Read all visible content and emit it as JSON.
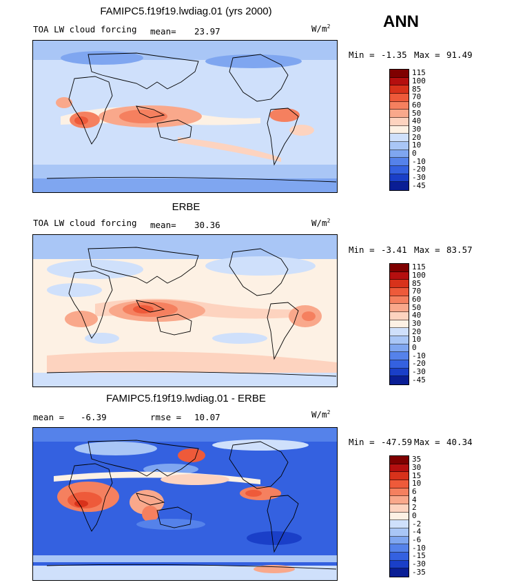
{
  "season": "ANN",
  "units_base": "W/m",
  "units_exp": "2",
  "panels": [
    {
      "title": "FAMIPC5.f19f19.lwdiag.01 (yrs 2000)",
      "left_label": "TOA LW cloud forcing",
      "stat_label": "mean=",
      "stat_value": "23.97",
      "min_label": "Min =",
      "min_value": "-1.35",
      "max_label": "Max =",
      "max_value": "91.49",
      "colorbar_levels": [
        "115",
        "100",
        "85",
        "70",
        "60",
        "50",
        "40",
        "30",
        "20",
        "10",
        "0",
        "-10",
        "-20",
        "-30",
        "-45"
      ]
    },
    {
      "title": "ERBE",
      "left_label": "TOA LW cloud forcing",
      "stat_label": "mean=",
      "stat_value": "30.36",
      "min_label": "Min =",
      "min_value": "-3.41",
      "max_label": "Max =",
      "max_value": "83.57",
      "colorbar_levels": [
        "115",
        "100",
        "85",
        "70",
        "60",
        "50",
        "40",
        "30",
        "20",
        "10",
        "0",
        "-10",
        "-20",
        "-30",
        "-45"
      ]
    },
    {
      "title": "FAMIPC5.f19f19.lwdiag.01 - ERBE",
      "left_label": "mean =",
      "left_value": "-6.39",
      "stat_label": "rmse =",
      "stat_value": "10.07",
      "min_label": "Min =",
      "min_value": "-47.59",
      "max_label": "Max =",
      "max_value": "40.34",
      "colorbar_levels": [
        "35",
        "30",
        "15",
        "10",
        "6",
        "4",
        "2",
        "0",
        "-2",
        "-4",
        "-6",
        "-10",
        "-15",
        "-30",
        "-35"
      ]
    }
  ],
  "palette": [
    "#7f0000",
    "#b50f0f",
    "#d8321b",
    "#ee5a3a",
    "#f5805f",
    "#f9a88b",
    "#fdd3bf",
    "#fdf1e4",
    "#cfe0fb",
    "#a9c6f6",
    "#7fa6f0",
    "#5582ea",
    "#3461e0",
    "#1a3fc8",
    "#0a1e95"
  ]
}
